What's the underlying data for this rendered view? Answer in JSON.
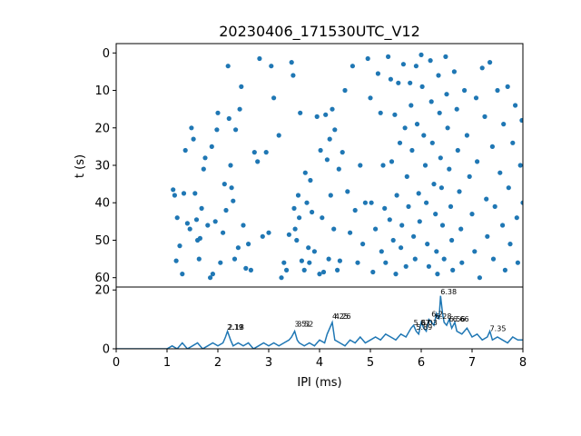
{
  "chart_data": [
    {
      "type": "scatter",
      "title": "20230406_171530UTC_V12",
      "ylabel": "t (s)",
      "xlim": [
        0,
        8
      ],
      "ylim": [
        62.5,
        -2.5
      ],
      "y_inverted": true,
      "yticks": [
        "0",
        "10",
        "20",
        "30",
        "40",
        "50",
        "60"
      ],
      "color": "#1f77b4",
      "note_points": "dense raster of inter-pulse intervals vs time; points below are estimated read-offs",
      "points": [
        [
          1.12,
          36.5
        ],
        [
          1.15,
          38
        ],
        [
          1.18,
          55.5
        ],
        [
          1.2,
          44
        ],
        [
          1.25,
          51.5
        ],
        [
          1.3,
          59
        ],
        [
          1.33,
          37.5
        ],
        [
          1.36,
          26
        ],
        [
          1.4,
          45.5
        ],
        [
          1.45,
          47
        ],
        [
          1.48,
          20
        ],
        [
          1.52,
          23
        ],
        [
          1.55,
          37.5
        ],
        [
          1.58,
          44.5
        ],
        [
          1.6,
          50
        ],
        [
          1.63,
          55
        ],
        [
          1.65,
          49.5
        ],
        [
          1.68,
          41.5
        ],
        [
          1.72,
          31
        ],
        [
          1.75,
          28
        ],
        [
          1.8,
          46
        ],
        [
          1.85,
          60
        ],
        [
          1.88,
          25
        ],
        [
          1.9,
          59
        ],
        [
          1.95,
          45
        ],
        [
          1.98,
          20.5
        ],
        [
          2.0,
          16
        ],
        [
          2.05,
          56
        ],
        [
          2.1,
          48
        ],
        [
          2.13,
          35
        ],
        [
          2.16,
          42
        ],
        [
          2.2,
          3.5
        ],
        [
          2.22,
          17.5
        ],
        [
          2.25,
          30
        ],
        [
          2.27,
          36
        ],
        [
          2.3,
          39.5
        ],
        [
          2.33,
          55
        ],
        [
          2.35,
          20.5
        ],
        [
          2.4,
          52
        ],
        [
          2.43,
          15
        ],
        [
          2.46,
          9
        ],
        [
          2.5,
          46
        ],
        [
          2.55,
          57.5
        ],
        [
          2.6,
          51
        ],
        [
          2.65,
          58
        ],
        [
          2.72,
          26.5
        ],
        [
          2.78,
          29
        ],
        [
          2.82,
          1.5
        ],
        [
          2.88,
          49
        ],
        [
          2.95,
          26.5
        ],
        [
          3.0,
          48
        ],
        [
          3.05,
          3.5
        ],
        [
          3.1,
          12
        ],
        [
          3.2,
          22
        ],
        [
          3.25,
          60
        ],
        [
          3.3,
          56
        ],
        [
          3.35,
          58
        ],
        [
          3.4,
          48.5
        ],
        [
          3.45,
          2.5
        ],
        [
          3.48,
          6
        ],
        [
          3.5,
          41.5
        ],
        [
          3.52,
          47
        ],
        [
          3.55,
          50
        ],
        [
          3.58,
          38
        ],
        [
          3.6,
          44
        ],
        [
          3.62,
          16
        ],
        [
          3.65,
          55.5
        ],
        [
          3.7,
          58
        ],
        [
          3.72,
          32
        ],
        [
          3.75,
          40
        ],
        [
          3.78,
          52
        ],
        [
          3.8,
          56
        ],
        [
          3.82,
          34
        ],
        [
          3.85,
          42.5
        ],
        [
          3.9,
          53
        ],
        [
          3.95,
          17
        ],
        [
          4.0,
          59
        ],
        [
          4.02,
          26
        ],
        [
          4.05,
          44
        ],
        [
          4.08,
          58.5
        ],
        [
          4.12,
          16.5
        ],
        [
          4.15,
          28.5
        ],
        [
          4.18,
          55
        ],
        [
          4.2,
          23
        ],
        [
          4.22,
          38
        ],
        [
          4.25,
          15
        ],
        [
          4.28,
          47
        ],
        [
          4.3,
          20.5
        ],
        [
          4.35,
          58
        ],
        [
          4.38,
          31
        ],
        [
          4.4,
          55.5
        ],
        [
          4.45,
          26.5
        ],
        [
          4.5,
          10
        ],
        [
          4.55,
          37
        ],
        [
          4.6,
          48
        ],
        [
          4.65,
          3.5
        ],
        [
          4.7,
          42
        ],
        [
          4.75,
          56
        ],
        [
          4.8,
          30
        ],
        [
          4.85,
          51
        ],
        [
          4.9,
          40
        ],
        [
          4.95,
          1.5
        ],
        [
          5.0,
          12
        ],
        [
          5.02,
          40
        ],
        [
          5.05,
          58.5
        ],
        [
          5.1,
          47
        ],
        [
          5.15,
          5.5
        ],
        [
          5.2,
          16
        ],
        [
          5.22,
          53
        ],
        [
          5.25,
          30
        ],
        [
          5.28,
          41.5
        ],
        [
          5.3,
          56
        ],
        [
          5.35,
          1
        ],
        [
          5.38,
          44.5
        ],
        [
          5.4,
          7
        ],
        [
          5.42,
          29
        ],
        [
          5.45,
          50
        ],
        [
          5.48,
          16.5
        ],
        [
          5.5,
          59
        ],
        [
          5.52,
          38
        ],
        [
          5.55,
          8
        ],
        [
          5.58,
          24
        ],
        [
          5.6,
          52
        ],
        [
          5.62,
          46
        ],
        [
          5.65,
          3
        ],
        [
          5.68,
          20
        ],
        [
          5.7,
          57
        ],
        [
          5.72,
          33
        ],
        [
          5.75,
          41
        ],
        [
          5.78,
          8
        ],
        [
          5.8,
          14
        ],
        [
          5.82,
          26
        ],
        [
          5.85,
          49
        ],
        [
          5.88,
          55
        ],
        [
          5.9,
          3.5
        ],
        [
          5.92,
          19
        ],
        [
          5.95,
          37.5
        ],
        [
          5.97,
          45
        ],
        [
          6.0,
          0.5
        ],
        [
          6.02,
          9
        ],
        [
          6.05,
          22
        ],
        [
          6.08,
          30
        ],
        [
          6.1,
          40
        ],
        [
          6.12,
          51
        ],
        [
          6.15,
          57
        ],
        [
          6.18,
          2
        ],
        [
          6.2,
          13
        ],
        [
          6.22,
          24
        ],
        [
          6.25,
          35
        ],
        [
          6.28,
          43
        ],
        [
          6.3,
          53
        ],
        [
          6.32,
          59
        ],
        [
          6.34,
          6
        ],
        [
          6.36,
          16
        ],
        [
          6.38,
          28
        ],
        [
          6.4,
          36
        ],
        [
          6.42,
          46
        ],
        [
          6.45,
          55
        ],
        [
          6.48,
          1
        ],
        [
          6.5,
          11
        ],
        [
          6.52,
          20
        ],
        [
          6.55,
          31
        ],
        [
          6.58,
          41
        ],
        [
          6.6,
          50
        ],
        [
          6.62,
          58
        ],
        [
          6.65,
          5
        ],
        [
          6.7,
          15
        ],
        [
          6.72,
          26
        ],
        [
          6.75,
          37
        ],
        [
          6.78,
          47
        ],
        [
          6.8,
          56
        ],
        [
          6.85,
          10
        ],
        [
          6.9,
          22
        ],
        [
          6.95,
          33
        ],
        [
          7.0,
          43
        ],
        [
          7.05,
          53
        ],
        [
          7.08,
          12
        ],
        [
          7.1,
          29
        ],
        [
          7.15,
          60
        ],
        [
          7.2,
          4
        ],
        [
          7.25,
          17
        ],
        [
          7.28,
          39
        ],
        [
          7.3,
          49
        ],
        [
          7.35,
          2.5
        ],
        [
          7.4,
          25
        ],
        [
          7.42,
          55
        ],
        [
          7.45,
          41
        ],
        [
          7.5,
          10
        ],
        [
          7.55,
          32
        ],
        [
          7.6,
          46
        ],
        [
          7.62,
          19
        ],
        [
          7.65,
          58
        ],
        [
          7.7,
          9
        ],
        [
          7.72,
          36
        ],
        [
          7.75,
          51
        ],
        [
          7.8,
          24
        ],
        [
          7.85,
          14
        ],
        [
          7.88,
          44
        ],
        [
          7.9,
          56
        ],
        [
          7.95,
          30
        ],
        [
          7.98,
          18
        ],
        [
          8.0,
          40
        ]
      ]
    },
    {
      "type": "line",
      "xlabel": "IPI (ms)",
      "xlim": [
        0,
        8
      ],
      "ylim": [
        0,
        21
      ],
      "xticks": [
        "0",
        "1",
        "2",
        "3",
        "4",
        "5",
        "6",
        "7",
        "8"
      ],
      "yticks": [
        "0",
        "20"
      ],
      "color": "#1f77b4",
      "x": [
        0,
        1.0,
        1.1,
        1.2,
        1.3,
        1.4,
        1.5,
        1.6,
        1.7,
        1.8,
        1.9,
        2.0,
        2.1,
        2.15,
        2.19,
        2.25,
        2.3,
        2.4,
        2.5,
        2.6,
        2.7,
        2.8,
        2.9,
        3.0,
        3.1,
        3.2,
        3.3,
        3.4,
        3.45,
        3.51,
        3.56,
        3.6,
        3.7,
        3.8,
        3.9,
        4.0,
        4.1,
        4.15,
        4.25,
        4.3,
        4.4,
        4.5,
        4.6,
        4.7,
        4.8,
        4.9,
        5.0,
        5.1,
        5.2,
        5.3,
        5.4,
        5.5,
        5.6,
        5.7,
        5.8,
        5.85,
        5.9,
        5.95,
        6.0,
        6.05,
        6.1,
        6.15,
        6.2,
        6.25,
        6.3,
        6.35,
        6.38,
        6.42,
        6.45,
        6.5,
        6.55,
        6.6,
        6.66,
        6.7,
        6.8,
        6.9,
        7.0,
        7.1,
        7.2,
        7.3,
        7.35,
        7.4,
        7.5,
        7.6,
        7.7,
        7.8,
        7.9,
        8.0
      ],
      "y": [
        0,
        0,
        1,
        0,
        2,
        0,
        1,
        2,
        0,
        1,
        2,
        1,
        2,
        4,
        6,
        3,
        1,
        2,
        1,
        2,
        0,
        1,
        2,
        1,
        2,
        1,
        2,
        3,
        4,
        6,
        3,
        2,
        1,
        2,
        1,
        3,
        2,
        5,
        9,
        3,
        2,
        1,
        3,
        2,
        4,
        2,
        3,
        4,
        3,
        5,
        4,
        3,
        5,
        4,
        7,
        8,
        6,
        5,
        9,
        7,
        6,
        10,
        9,
        8,
        12,
        10,
        18,
        12,
        9,
        8,
        10,
        7,
        9,
        6,
        5,
        7,
        4,
        5,
        3,
        4,
        6,
        3,
        4,
        3,
        2,
        4,
        3,
        3
      ],
      "annotations": [
        {
          "x": 2.18,
          "y": 6.5,
          "text": "2.19"
        },
        {
          "x": 2.2,
          "y": 6.5,
          "text": "2.18"
        },
        {
          "x": 3.51,
          "y": 7.5,
          "text": "3.51"
        },
        {
          "x": 3.56,
          "y": 7.5,
          "text": "3.52"
        },
        {
          "x": 4.25,
          "y": 10.2,
          "text": "4.25"
        },
        {
          "x": 4.3,
          "y": 10.2,
          "text": "4.26"
        },
        {
          "x": 5.85,
          "y": 8.0,
          "text": "5.87"
        },
        {
          "x": 5.9,
          "y": 6.5,
          "text": "5.89"
        },
        {
          "x": 6.0,
          "y": 8.0,
          "text": "6.03"
        },
        {
          "x": 6.2,
          "y": 11.0,
          "text": "6.2"
        },
        {
          "x": 6.28,
          "y": 10.2,
          "text": "6.28"
        },
        {
          "x": 6.38,
          "y": 18.5,
          "text": "6.38"
        },
        {
          "x": 6.62,
          "y": 9.2,
          "text": "6.66"
        },
        {
          "x": 6.55,
          "y": 9.2,
          "text": "6.56"
        },
        {
          "x": 7.35,
          "y": 6.0,
          "text": "7.35"
        }
      ]
    }
  ]
}
